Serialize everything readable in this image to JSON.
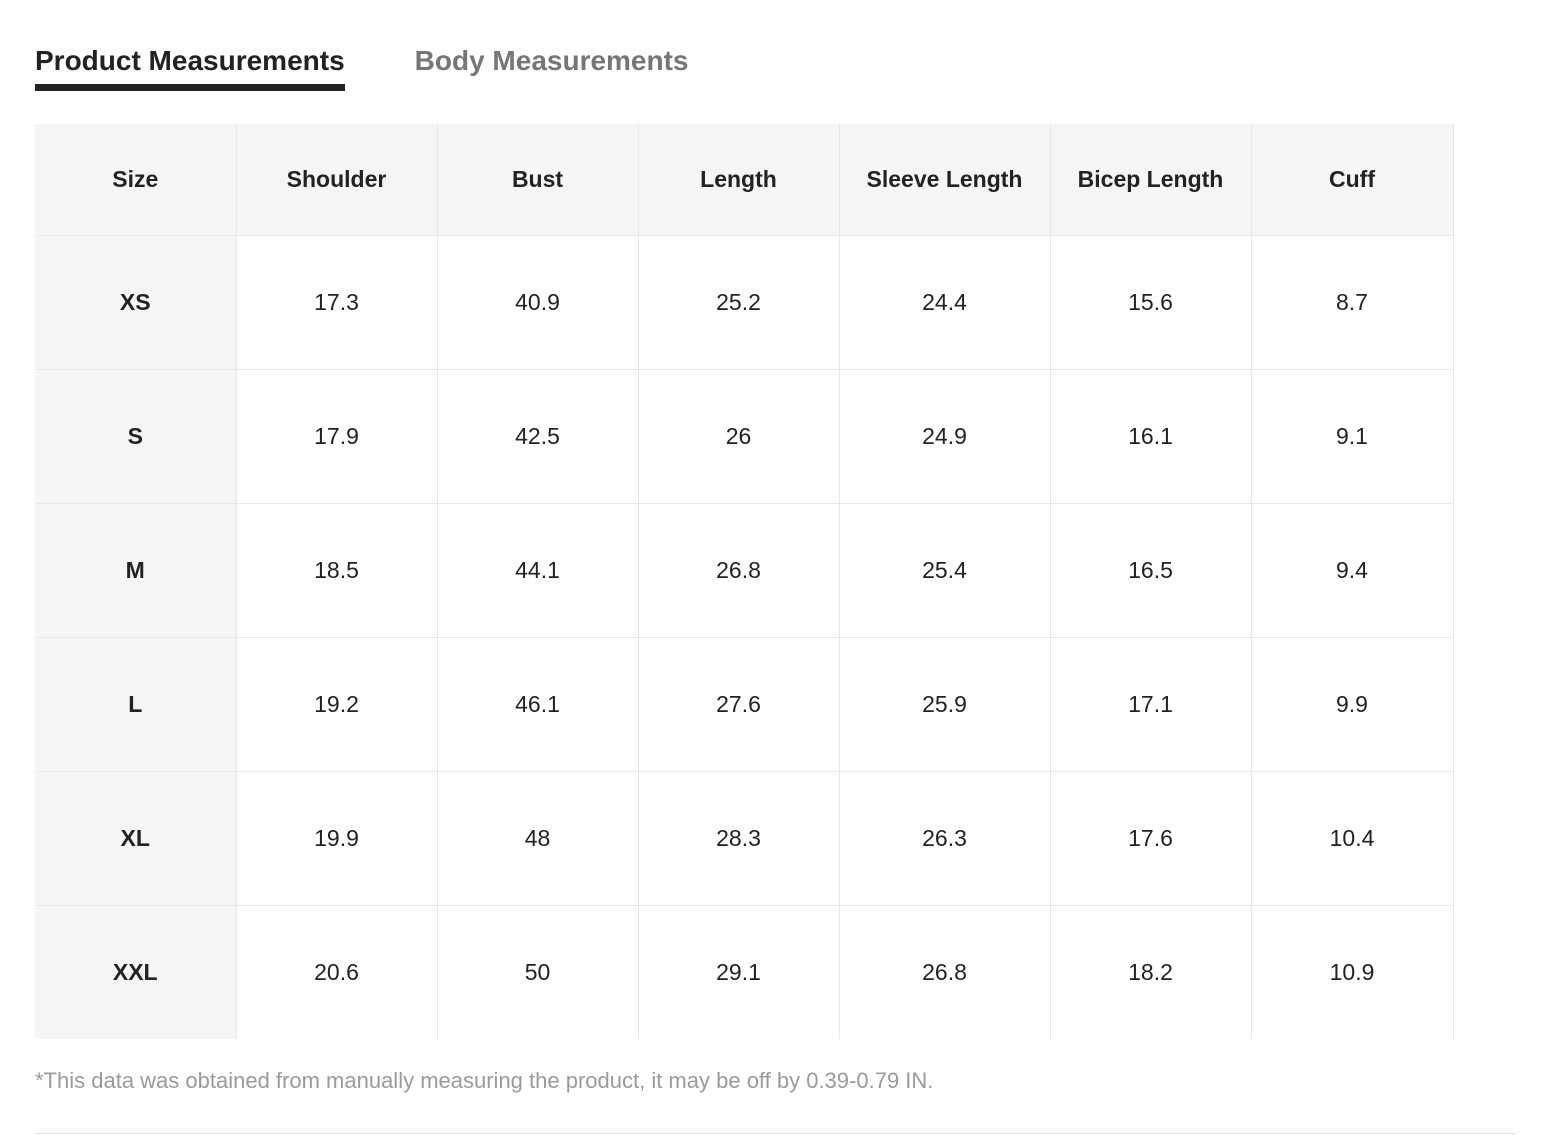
{
  "tabs": {
    "product_label": "Product Measurements",
    "body_label": "Body Measurements",
    "active": "product"
  },
  "table": {
    "headers": [
      "Size",
      "Shoulder",
      "Bust",
      "Length",
      "Sleeve Length",
      "Bicep Length",
      "Cuff"
    ],
    "rows": [
      [
        "XS",
        "17.3",
        "40.9",
        "25.2",
        "24.4",
        "15.6",
        "8.7"
      ],
      [
        "S",
        "17.9",
        "42.5",
        "26",
        "24.9",
        "16.1",
        "9.1"
      ],
      [
        "M",
        "18.5",
        "44.1",
        "26.8",
        "25.4",
        "16.5",
        "9.4"
      ],
      [
        "L",
        "19.2",
        "46.1",
        "27.6",
        "25.9",
        "17.1",
        "9.9"
      ],
      [
        "XL",
        "19.9",
        "48",
        "28.3",
        "26.3",
        "17.6",
        "10.4"
      ],
      [
        "XXL",
        "20.6",
        "50",
        "29.1",
        "26.8",
        "18.2",
        "10.9"
      ]
    ]
  },
  "note": "*This data was obtained from manually measuring the product, it may be off by 0.39-0.79 IN.",
  "colors": {
    "active_tab": "#222222",
    "inactive_tab": "#767676",
    "header_background": "#f5f5f5",
    "grid_line": "#e7e7e7",
    "note_text": "#9a9a9a"
  }
}
